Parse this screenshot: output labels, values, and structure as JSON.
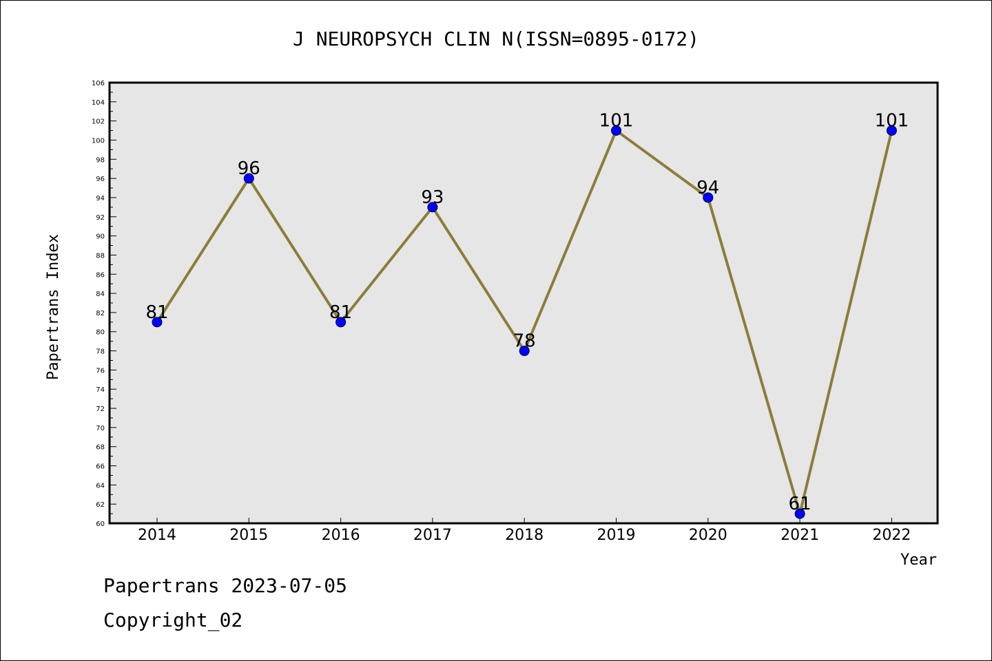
{
  "chart_data": {
    "type": "line",
    "title": "J NEUROPSYCH CLIN N(ISSN=0895-0172)",
    "xlabel": "Year",
    "ylabel": "Papertrans Index",
    "categories": [
      "2014",
      "2015",
      "2016",
      "2017",
      "2018",
      "2019",
      "2020",
      "2021",
      "2022"
    ],
    "series": [
      {
        "values": [
          81,
          96,
          81,
          93,
          78,
          101,
          94,
          61,
          101
        ]
      }
    ],
    "data_labels": [
      "81",
      "96",
      "81",
      "93",
      "78",
      "101",
      "94",
      "61",
      "101"
    ],
    "ylim": [
      60,
      106
    ],
    "yticks": [
      60,
      62,
      64,
      66,
      68,
      70,
      72,
      74,
      76,
      78,
      80,
      82,
      84,
      86,
      88,
      90,
      92,
      94,
      96,
      98,
      100,
      102,
      104,
      106
    ],
    "grid": false,
    "legend": "none",
    "colors": {
      "plot_background": "#e6e6e6",
      "line": "#8b7d3a",
      "marker": "#0000ff"
    }
  },
  "footer": {
    "line1": "Papertrans 2023-07-05",
    "line2": "Copyright_02"
  }
}
